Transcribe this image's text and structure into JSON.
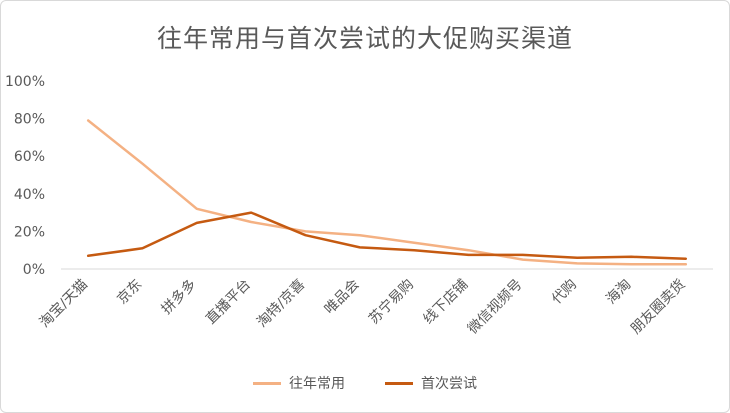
{
  "chart_data": {
    "type": "line",
    "title": "往年常用与首次尝试的大促购买渠道",
    "categories": [
      "淘宝/天猫",
      "京东",
      "拼多多",
      "直播平台",
      "淘特/京喜",
      "唯品会",
      "苏宁易购",
      "线下店铺",
      "微信视频号",
      "代购",
      "海淘",
      "朋友圈卖货"
    ],
    "y_ticks": [
      "0%",
      "20%",
      "40%",
      "60%",
      "80%",
      "100%"
    ],
    "ylim": [
      0,
      100
    ],
    "grid": false,
    "legend_position": "bottom",
    "series": [
      {
        "name": "往年常用",
        "color": "#F4B183",
        "values": [
          79,
          56,
          32,
          25,
          20,
          18,
          14,
          10,
          5,
          3,
          2.5,
          2.5
        ]
      },
      {
        "name": "首次尝试",
        "color": "#C55A11",
        "values": [
          7,
          11,
          24.5,
          30,
          18,
          11.5,
          10,
          7.5,
          7.5,
          6,
          6.5,
          5.5
        ]
      }
    ]
  }
}
